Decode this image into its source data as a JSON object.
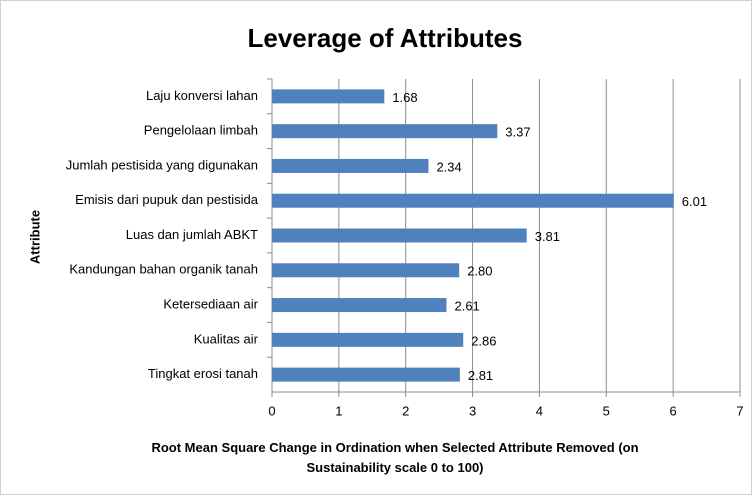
{
  "chart_data": {
    "type": "bar",
    "orientation": "horizontal",
    "title": "Leverage of Attributes",
    "x_label": "Root Mean Square Change in Ordination when Selected Attribute Removed (on Sustainability scale 0 to 100)",
    "y_label": "Attribute",
    "categories": [
      "Laju konversi lahan",
      "Pengelolaan limbah",
      "Jumlah pestisida yang digunakan",
      "Emisis dari pupuk dan pestisida",
      "Luas dan jumlah ABKT",
      "Kandungan bahan organik tanah",
      "Ketersediaan air",
      "Kualitas air",
      "Tingkat erosi tanah"
    ],
    "values": [
      1.68,
      3.37,
      2.34,
      6.01,
      3.81,
      2.8,
      2.61,
      2.86,
      2.81
    ],
    "value_labels": [
      "1.68",
      "3.37",
      "2.34",
      "6.01",
      "3.81",
      "2.80",
      "2.61",
      "2.86",
      "2.81"
    ],
    "color": "#4f81bd",
    "xlim": [
      0,
      7
    ],
    "xticks": [
      0,
      1,
      2,
      3,
      4,
      5,
      6,
      7
    ],
    "grid": true
  }
}
